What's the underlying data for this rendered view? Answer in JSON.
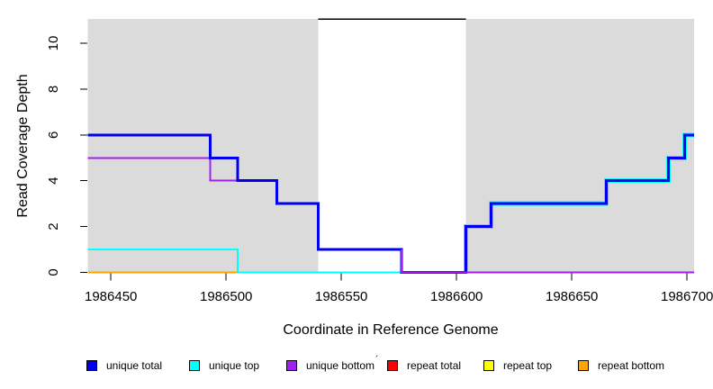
{
  "chart_data": {
    "type": "line",
    "title": "",
    "xlabel": "Coordinate in Reference Genome",
    "ylabel": "Read Coverage Depth",
    "xlim": [
      1986440,
      1986703
    ],
    "ylim": [
      0,
      11.1
    ],
    "xticks": [
      1986450,
      1986500,
      1986550,
      1986600,
      1986650,
      1986700
    ],
    "yticks": [
      0,
      2,
      4,
      6,
      8,
      10
    ],
    "grid": false,
    "legend_position": "bottom",
    "background_regions": [
      {
        "name": "unique-left",
        "x1": 1986440,
        "x2": 1986540,
        "color": "#DBDBDB"
      },
      {
        "name": "repeat-middle",
        "x1": 1986540,
        "x2": 1986604,
        "color": "#FFFFFF"
      },
      {
        "name": "unique-right",
        "x1": 1986604,
        "x2": 1986703,
        "color": "#DBDBDB"
      }
    ],
    "series": [
      {
        "name": "repeat total",
        "color": "#FF0000",
        "width": 2,
        "points": [
          [
            1986440,
            0
          ],
          [
            1986703,
            0
          ]
        ]
      },
      {
        "name": "repeat top",
        "color": "#FFFF00",
        "width": 2,
        "points": [
          [
            1986440,
            0
          ],
          [
            1986703,
            0
          ]
        ]
      },
      {
        "name": "repeat bottom",
        "color": "#FFA500",
        "width": 2,
        "points": [
          [
            1986440,
            0
          ],
          [
            1986703,
            0
          ]
        ]
      },
      {
        "name": "unique bottom",
        "color": "#A020F0",
        "width": 2,
        "topmost_from": 1986576,
        "points": [
          [
            1986440,
            5
          ],
          [
            1986493,
            5
          ],
          [
            1986493,
            4
          ],
          [
            1986522,
            4
          ],
          [
            1986522,
            3
          ],
          [
            1986540,
            3
          ],
          [
            1986540,
            1
          ],
          [
            1986576,
            1
          ],
          [
            1986576,
            0
          ],
          [
            1986703,
            0
          ]
        ]
      },
      {
        "name": "unique top",
        "color": "#00FFFF",
        "width": 2,
        "halo_from": 1986604,
        "halo_width": 5,
        "points": [
          [
            1986440,
            1
          ],
          [
            1986505,
            1
          ],
          [
            1986505,
            0
          ],
          [
            1986604,
            0
          ],
          [
            1986604,
            2
          ],
          [
            1986615,
            2
          ],
          [
            1986615,
            3
          ],
          [
            1986665,
            3
          ],
          [
            1986665,
            4
          ],
          [
            1986692,
            4
          ],
          [
            1986692,
            5
          ],
          [
            1986699,
            5
          ],
          [
            1986699,
            6
          ],
          [
            1986703,
            6
          ]
        ]
      },
      {
        "name": "unique total",
        "color": "#0000EE",
        "width": 3,
        "points": [
          [
            1986440,
            6
          ],
          [
            1986493,
            6
          ],
          [
            1986493,
            5
          ],
          [
            1986505,
            5
          ],
          [
            1986505,
            4
          ],
          [
            1986522,
            4
          ],
          [
            1986522,
            3
          ],
          [
            1986540,
            3
          ],
          [
            1986540,
            1
          ],
          [
            1986576,
            1
          ],
          [
            1986576,
            0
          ],
          [
            1986604,
            0
          ],
          [
            1986604,
            2
          ],
          [
            1986615,
            2
          ],
          [
            1986615,
            3
          ],
          [
            1986665,
            3
          ],
          [
            1986665,
            4
          ],
          [
            1986692,
            4
          ],
          [
            1986692,
            5
          ],
          [
            1986699,
            5
          ],
          [
            1986699,
            6
          ],
          [
            1986703,
            6
          ]
        ]
      }
    ],
    "annotations": [
      {
        "name": "repeat-region-top-line",
        "color": "#000000",
        "width": 1.5,
        "points": [
          [
            1986540,
            11.05
          ],
          [
            1986604,
            11.05
          ]
        ]
      }
    ]
  },
  "legend": {
    "items": [
      {
        "label": "unique total",
        "color": "#0000EE"
      },
      {
        "label": "unique top",
        "color": "#00FFFF"
      },
      {
        "label": "unique bottom",
        "color": "#A020F0"
      },
      {
        "label": "repeat total",
        "color": "#FF0000"
      },
      {
        "label": "repeat top",
        "color": "#FFFF00"
      },
      {
        "label": "repeat bottom",
        "color": "#FFA500"
      }
    ],
    "stray_mark": "´"
  }
}
